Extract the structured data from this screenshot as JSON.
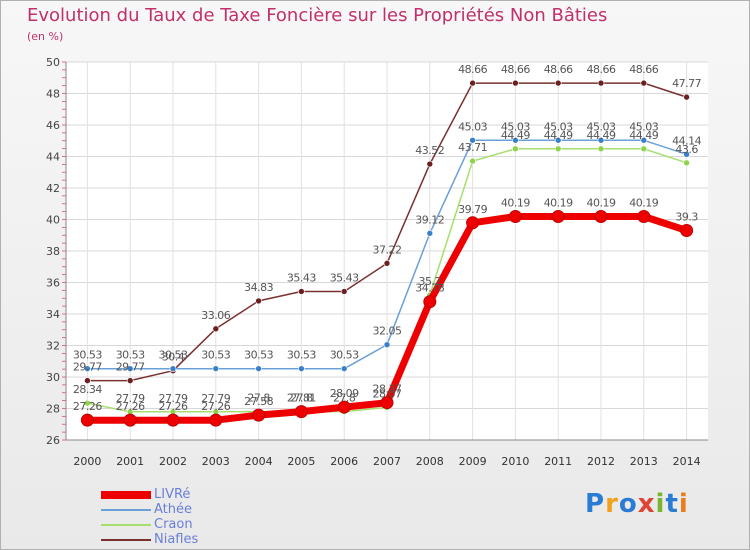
{
  "title": "Evolution du Taux de Taxe Foncière sur les Propriétés Non Bâties",
  "subtitle": "(en %)",
  "logo": {
    "text": "Proxiti",
    "colors": [
      "#2a7bd4",
      "#f2a11d",
      "#2a7bd4",
      "#e04433",
      "#7ab530",
      "#2a7bd4",
      "#e87d1e"
    ]
  },
  "chart_data": {
    "type": "line",
    "title": "Evolution du Taux de Taxe Foncière sur les Propriétés Non Bâties",
    "ylabel": "(en %)",
    "xlabel": "",
    "x": [
      "2000",
      "2001",
      "2002",
      "2003",
      "2004",
      "2005",
      "2006",
      "2007",
      "2008",
      "2009",
      "2010",
      "2011",
      "2012",
      "2013",
      "2014"
    ],
    "ylim": [
      26,
      50
    ],
    "yticks": [
      26,
      28,
      30,
      32,
      34,
      36,
      38,
      40,
      42,
      44,
      46,
      48,
      50
    ],
    "grid": true,
    "legend_position": "bottom-left",
    "series": [
      {
        "name": "LIVRé",
        "color": "#ee0000",
        "marker": "#ee0000",
        "values": [
          27.26,
          27.26,
          27.26,
          27.26,
          27.58,
          27.8,
          28.09,
          28.37,
          34.78,
          39.79,
          40.19,
          40.19,
          40.19,
          40.19,
          39.3
        ],
        "labels": [
          "27.26",
          "27.26",
          "27.26",
          "27.26",
          "27.58",
          "27.8",
          "28.09",
          "28.37",
          "34.78",
          "39.79",
          "40.19",
          "40.19",
          "40.19",
          "40.19",
          "39.3"
        ]
      },
      {
        "name": "Athée",
        "color": "#6aa0d8",
        "marker": "#3a80c8",
        "values": [
          30.53,
          30.53,
          30.53,
          30.53,
          30.53,
          30.53,
          30.53,
          32.05,
          39.12,
          45.03,
          45.03,
          45.03,
          45.03,
          45.03,
          44.14
        ],
        "labels": [
          "30.53",
          "30.53",
          "30.53",
          "30.53",
          "30.53",
          "30.53",
          "30.53",
          "32.05",
          "39.12",
          "45.03",
          "45.03",
          "45.03",
          "45.03",
          "45.03",
          "44.14"
        ]
      },
      {
        "name": "Craon",
        "color": "#a6de6e",
        "marker": "#8cd44c",
        "values": [
          28.34,
          27.79,
          27.79,
          27.79,
          27.8,
          27.81,
          27.8,
          28.07,
          35.2,
          43.71,
          44.49,
          44.49,
          44.49,
          44.49,
          43.6
        ],
        "labels": [
          "28.34",
          "27.79",
          "27.79",
          "27.79",
          "27.8",
          "27.81",
          "27.8",
          "28.07",
          "35.2",
          "43.71",
          "44.49",
          "44.49",
          "44.49",
          "44.49",
          "43.6"
        ]
      },
      {
        "name": "Niafles",
        "color": "#7b3030",
        "marker": "#6a2020",
        "values": [
          29.77,
          29.77,
          30.4,
          33.06,
          34.83,
          35.43,
          35.43,
          37.22,
          43.52,
          48.66,
          48.66,
          48.66,
          48.66,
          48.66,
          47.77
        ],
        "labels": [
          "29.77",
          "29.77",
          "30.4",
          "33.06",
          "34.83",
          "35.43",
          "35.43",
          "37.22",
          "43.52",
          "48.66",
          "48.66",
          "48.66",
          "48.66",
          "48.66",
          "47.77"
        ]
      }
    ]
  }
}
